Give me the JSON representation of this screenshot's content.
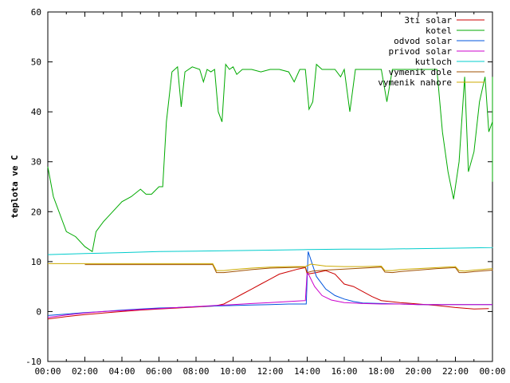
{
  "chart_data": {
    "type": "line",
    "ylabel": "teplota ve C",
    "xlim": [
      0,
      24
    ],
    "ylim": [
      -10,
      60
    ],
    "x_ticks": [
      "00:00",
      "02:00",
      "04:00",
      "06:00",
      "08:00",
      "10:00",
      "12:00",
      "14:00",
      "16:00",
      "18:00",
      "20:00",
      "22:00",
      "00:00"
    ],
    "y_ticks": [
      "-10",
      "0",
      "10",
      "20",
      "30",
      "40",
      "50",
      "60"
    ],
    "legend_position": "top-right",
    "grid": false,
    "series": [
      {
        "name": "3ti solar",
        "color": "#cc0000",
        "points": [
          [
            0,
            -1.5
          ],
          [
            1,
            -1.0
          ],
          [
            2,
            -0.6
          ],
          [
            3,
            -0.3
          ],
          [
            4,
            0.0
          ],
          [
            5,
            0.3
          ],
          [
            6,
            0.5
          ],
          [
            7,
            0.7
          ],
          [
            8,
            0.9
          ],
          [
            9,
            1.1
          ],
          [
            9.5,
            1.5
          ],
          [
            10,
            2.5
          ],
          [
            10.5,
            3.5
          ],
          [
            11,
            4.5
          ],
          [
            11.5,
            5.5
          ],
          [
            12,
            6.5
          ],
          [
            12.5,
            7.5
          ],
          [
            13,
            8.0
          ],
          [
            13.5,
            8.5
          ],
          [
            13.9,
            8.8
          ],
          [
            14,
            7.5
          ],
          [
            14.5,
            7.8
          ],
          [
            15,
            8.2
          ],
          [
            15.5,
            7.5
          ],
          [
            16,
            5.5
          ],
          [
            16.5,
            5.0
          ],
          [
            17,
            4.0
          ],
          [
            17.5,
            3.0
          ],
          [
            18,
            2.2
          ],
          [
            19,
            1.8
          ],
          [
            20,
            1.5
          ],
          [
            21,
            1.2
          ],
          [
            22,
            0.8
          ],
          [
            23,
            0.5
          ],
          [
            23.8,
            0.6
          ]
        ]
      },
      {
        "name": "kotel",
        "color": "#00aa00",
        "points": [
          [
            0,
            29
          ],
          [
            0.3,
            23
          ],
          [
            0.7,
            19
          ],
          [
            1,
            16
          ],
          [
            1.5,
            15
          ],
          [
            2,
            13
          ],
          [
            2.4,
            12
          ],
          [
            2.6,
            16
          ],
          [
            3,
            18
          ],
          [
            3.5,
            20
          ],
          [
            4,
            22
          ],
          [
            4.5,
            23
          ],
          [
            5,
            24.5
          ],
          [
            5.3,
            23.5
          ],
          [
            5.6,
            23.5
          ],
          [
            6,
            25
          ],
          [
            6.2,
            25
          ],
          [
            6.4,
            38
          ],
          [
            6.7,
            48
          ],
          [
            7,
            49
          ],
          [
            7.2,
            41
          ],
          [
            7.4,
            48
          ],
          [
            7.8,
            49
          ],
          [
            8.2,
            48.5
          ],
          [
            8.4,
            46
          ],
          [
            8.6,
            48.5
          ],
          [
            8.8,
            48
          ],
          [
            9.0,
            48.5
          ],
          [
            9.2,
            40
          ],
          [
            9.4,
            38
          ],
          [
            9.6,
            49.5
          ],
          [
            9.8,
            48.5
          ],
          [
            10,
            49
          ],
          [
            10.2,
            47.5
          ],
          [
            10.5,
            48.5
          ],
          [
            11,
            48.5
          ],
          [
            11.5,
            48
          ],
          [
            12,
            48.5
          ],
          [
            12.5,
            48.5
          ],
          [
            13,
            48
          ],
          [
            13.3,
            46
          ],
          [
            13.6,
            48.5
          ],
          [
            13.9,
            48.5
          ],
          [
            14.1,
            40.5
          ],
          [
            14.3,
            42
          ],
          [
            14.5,
            49.5
          ],
          [
            14.8,
            48.5
          ],
          [
            15,
            48.5
          ],
          [
            15.5,
            48.5
          ],
          [
            15.8,
            47
          ],
          [
            16,
            48.5
          ],
          [
            16.3,
            40
          ],
          [
            16.6,
            48.5
          ],
          [
            17,
            48.5
          ],
          [
            17.5,
            48.5
          ],
          [
            18,
            48.5
          ],
          [
            18.3,
            42
          ],
          [
            18.6,
            48.5
          ],
          [
            19,
            48.5
          ],
          [
            19.5,
            48.5
          ],
          [
            20,
            48.5
          ],
          [
            20.5,
            48.5
          ],
          [
            21,
            48.5
          ],
          [
            21.3,
            36
          ],
          [
            21.6,
            28
          ],
          [
            21.9,
            22.5
          ],
          [
            22.2,
            30
          ],
          [
            22.5,
            47
          ],
          [
            22.7,
            28
          ],
          [
            23,
            32
          ],
          [
            23.3,
            42
          ],
          [
            23.6,
            47
          ],
          [
            23.8,
            36
          ],
          [
            24,
            38
          ],
          [
            24.2,
            47
          ],
          [
            24.5,
            42
          ],
          [
            24.8,
            26
          ]
        ]
      },
      {
        "name": "odvod solar",
        "color": "#0055dd",
        "points": [
          [
            0,
            -0.8
          ],
          [
            1,
            -0.5
          ],
          [
            2,
            -0.2
          ],
          [
            3,
            0.0
          ],
          [
            4,
            0.3
          ],
          [
            5,
            0.5
          ],
          [
            6,
            0.7
          ],
          [
            7,
            0.8
          ],
          [
            8,
            1.0
          ],
          [
            9,
            1.1
          ],
          [
            10,
            1.2
          ],
          [
            11,
            1.3
          ],
          [
            12,
            1.4
          ],
          [
            13,
            1.5
          ],
          [
            13.95,
            1.5
          ],
          [
            14.05,
            12
          ],
          [
            14.5,
            7
          ],
          [
            15,
            4.5
          ],
          [
            15.5,
            3.2
          ],
          [
            16,
            2.5
          ],
          [
            16.5,
            2.0
          ],
          [
            17,
            1.7
          ],
          [
            18,
            1.6
          ],
          [
            19,
            1.5
          ],
          [
            20,
            1.4
          ],
          [
            21,
            1.4
          ],
          [
            22,
            1.4
          ],
          [
            23,
            1.4
          ],
          [
            24,
            1.4
          ]
        ]
      },
      {
        "name": "privod solar",
        "color": "#cc00cc",
        "points": [
          [
            0,
            -1.2
          ],
          [
            1,
            -0.7
          ],
          [
            2,
            -0.3
          ],
          [
            3,
            0.0
          ],
          [
            4,
            0.2
          ],
          [
            5,
            0.4
          ],
          [
            6,
            0.6
          ],
          [
            7,
            0.8
          ],
          [
            8,
            1.0
          ],
          [
            9,
            1.2
          ],
          [
            10,
            1.4
          ],
          [
            11,
            1.6
          ],
          [
            12,
            1.8
          ],
          [
            13,
            2.0
          ],
          [
            13.9,
            2.2
          ],
          [
            14,
            8.0
          ],
          [
            14.4,
            5
          ],
          [
            14.8,
            3.2
          ],
          [
            15.3,
            2.3
          ],
          [
            16,
            1.8
          ],
          [
            17,
            1.6
          ],
          [
            18,
            1.5
          ],
          [
            19,
            1.5
          ],
          [
            20,
            1.4
          ],
          [
            21,
            1.4
          ],
          [
            22,
            1.4
          ],
          [
            23,
            1.4
          ],
          [
            24,
            1.4
          ]
        ]
      },
      {
        "name": "kutloch",
        "color": "#00cccc",
        "points": [
          [
            0,
            11.4
          ],
          [
            2,
            11.6
          ],
          [
            4,
            11.8
          ],
          [
            6,
            12.0
          ],
          [
            8,
            12.1
          ],
          [
            10,
            12.2
          ],
          [
            12,
            12.3
          ],
          [
            14,
            12.4
          ],
          [
            16,
            12.5
          ],
          [
            18,
            12.5
          ],
          [
            20,
            12.6
          ],
          [
            22,
            12.7
          ],
          [
            24,
            12.8
          ],
          [
            24.8,
            12.9
          ]
        ]
      },
      {
        "name": "vymenik dole",
        "color": "#a05000",
        "points": [
          [
            2,
            9.4
          ],
          [
            4,
            9.4
          ],
          [
            6,
            9.4
          ],
          [
            8,
            9.4
          ],
          [
            8.9,
            9.4
          ],
          [
            9.1,
            7.8
          ],
          [
            9.5,
            7.8
          ],
          [
            10,
            8.0
          ],
          [
            11,
            8.4
          ],
          [
            12,
            8.7
          ],
          [
            13,
            8.8
          ],
          [
            13.9,
            8.9
          ],
          [
            14,
            7.8
          ],
          [
            14.3,
            8.1
          ],
          [
            15,
            8.3
          ],
          [
            16,
            8.5
          ],
          [
            17,
            8.7
          ],
          [
            18,
            8.9
          ],
          [
            18.2,
            7.9
          ],
          [
            18.6,
            7.8
          ],
          [
            19,
            8.0
          ],
          [
            20,
            8.3
          ],
          [
            21,
            8.6
          ],
          [
            22,
            8.8
          ],
          [
            22.2,
            7.8
          ],
          [
            22.5,
            7.8
          ],
          [
            23,
            8.0
          ],
          [
            24,
            8.3
          ],
          [
            24.8,
            8.4
          ]
        ]
      },
      {
        "name": "vymenik nahore",
        "color": "#ccaa00",
        "points": [
          [
            0,
            9.6
          ],
          [
            2,
            9.6
          ],
          [
            4,
            9.6
          ],
          [
            6,
            9.6
          ],
          [
            8,
            9.6
          ],
          [
            8.9,
            9.6
          ],
          [
            9.1,
            8.2
          ],
          [
            9.5,
            8.2
          ],
          [
            10,
            8.4
          ],
          [
            11,
            8.7
          ],
          [
            12,
            8.9
          ],
          [
            13,
            9.0
          ],
          [
            13.9,
            9.0
          ],
          [
            14.2,
            9.5
          ],
          [
            15,
            9.1
          ],
          [
            16,
            9.0
          ],
          [
            17,
            9.0
          ],
          [
            18,
            9.1
          ],
          [
            18.2,
            8.2
          ],
          [
            18.6,
            8.2
          ],
          [
            19,
            8.4
          ],
          [
            20,
            8.6
          ],
          [
            21,
            8.8
          ],
          [
            22,
            9.0
          ],
          [
            22.2,
            8.2
          ],
          [
            22.5,
            8.1
          ],
          [
            23,
            8.3
          ],
          [
            24,
            8.6
          ],
          [
            24.8,
            8.6
          ]
        ]
      }
    ]
  }
}
